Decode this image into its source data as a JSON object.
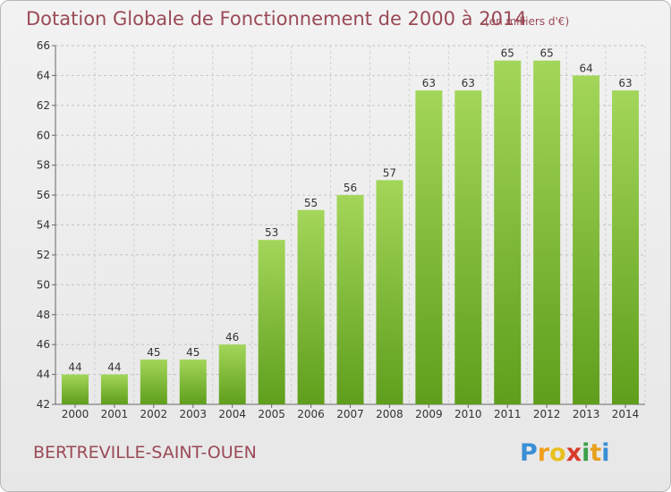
{
  "header": {
    "title": "Dotation Globale de Fonctionnement de 2000 à 2014",
    "unit": "(en milliers d'€)"
  },
  "footer": {
    "commune": "BERTREVILLE-SAINT-OUEN",
    "logo_letters": [
      "P",
      "r",
      "o",
      "x",
      "i",
      "t",
      "i"
    ]
  },
  "colors": {
    "title": "#9a4a56",
    "bar_top": "#a3d65a",
    "bar_bottom": "#5f9e1c",
    "logo": [
      "#3a8fd6",
      "#f0a020",
      "#e8c020",
      "#d83a2a",
      "#3aa04a",
      "#e8a020",
      "#3a8fd6"
    ]
  },
  "chart_data": {
    "type": "bar",
    "categories": [
      "2000",
      "2001",
      "2002",
      "2003",
      "2004",
      "2005",
      "2006",
      "2007",
      "2008",
      "2009",
      "2010",
      "2011",
      "2012",
      "2013",
      "2014"
    ],
    "values": [
      44,
      44,
      45,
      45,
      46,
      53,
      55,
      56,
      57,
      63,
      63,
      65,
      65,
      64,
      63
    ],
    "title": "Dotation Globale de Fonctionnement de 2000 à 2014",
    "xlabel": "",
    "ylabel": "",
    "ylim": [
      42,
      66
    ],
    "yticks": [
      42,
      44,
      46,
      48,
      50,
      52,
      54,
      56,
      58,
      60,
      62,
      64,
      66
    ],
    "grid": true,
    "data_labels": true
  }
}
